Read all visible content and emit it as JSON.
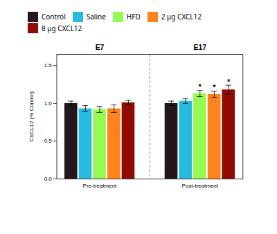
{
  "chart_data": {
    "type": "bar",
    "categories": [
      "Pre-treatment",
      "Post-treatment"
    ],
    "series": [
      {
        "name": "Control",
        "values": [
          1.0,
          1.0
        ],
        "errors": [
          0.03,
          0.03
        ],
        "significance": [
          null,
          null
        ]
      },
      {
        "name": "Saline",
        "values": [
          0.93,
          1.03
        ],
        "errors": [
          0.04,
          0.03
        ],
        "significance": [
          null,
          null
        ]
      },
      {
        "name": "HFD",
        "values": [
          0.92,
          1.13
        ],
        "errors": [
          0.04,
          0.04
        ],
        "significance": [
          null,
          "*"
        ]
      },
      {
        "name": "2 μg CXCL12",
        "values": [
          0.93,
          1.12
        ],
        "errors": [
          0.05,
          0.04
        ],
        "significance": [
          null,
          "*"
        ]
      },
      {
        "name": "8 μg CXCL12",
        "values": [
          1.01,
          1.18
        ],
        "errors": [
          0.03,
          0.06
        ],
        "significance": [
          null,
          "*"
        ]
      }
    ],
    "annotations": [
      {
        "text": "E7",
        "category": "Pre-treatment"
      },
      {
        "text": "E17",
        "category": "Post-treatment"
      }
    ],
    "ylabel": "CXCL12 (% Control)",
    "ylim": [
      0.0,
      1.65
    ],
    "yticks": [
      {
        "value": 0,
        "label": "0.0"
      },
      {
        "value": 0.5,
        "label": "0.5"
      },
      {
        "value": 1,
        "label": "1.0"
      },
      {
        "value": 1.5,
        "label": "1.5"
      }
    ],
    "grid": false,
    "legend": "top"
  }
}
